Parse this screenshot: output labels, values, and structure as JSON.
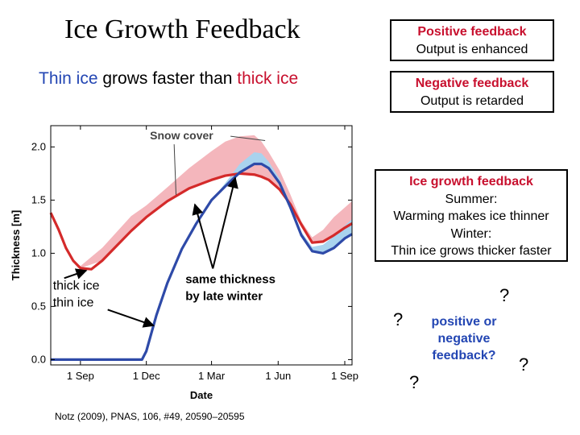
{
  "slide": {
    "title": "Ice Growth Feedback",
    "subtitle": {
      "part1": "Thin ice",
      "part2": " grows faster than ",
      "part3": "thick ice"
    },
    "positive_box": {
      "heading": "Positive feedback",
      "text": "Output is enhanced"
    },
    "negative_box": {
      "heading": "Negative feedback",
      "text": "Output is retarded"
    },
    "growth_box": {
      "heading": "Ice growth feedback",
      "lines": [
        "Summer:",
        "Warming makes ice thinner",
        "Winter:",
        "Thin ice grows thicker faster"
      ]
    },
    "question_text": "positive or negative feedback?",
    "question_mark": "?",
    "citation": "Notz (2009), PNAS, 106, #49, 20590–20595"
  },
  "colors": {
    "thick_ice": "#d42a2a",
    "thin_ice": "#2e4aa8",
    "snow_thick": "#f4b6bc",
    "snow_thin": "#a9d3ee",
    "title_red": "#c8102e",
    "title_blue": "#2346b3"
  },
  "chart_data": {
    "type": "line",
    "xlabel": "Date",
    "ylabel": "Thickness [m]",
    "x_ticks": [
      "1 Sep",
      "1 Dec",
      "1 Mar",
      "1 Jun",
      "1 Sep"
    ],
    "x_tick_days": [
      0,
      91,
      181,
      273,
      365
    ],
    "xlim_days": [
      -41,
      375
    ],
    "y_ticks": [
      0.0,
      0.5,
      1.0,
      1.5,
      2.0
    ],
    "ylim": [
      -0.05,
      2.2
    ],
    "grid": false,
    "series": [
      {
        "name": "thick ice",
        "color": "#d42a2a",
        "x_days": [
          -41,
          -30,
          -20,
          -10,
          0,
          15,
          30,
          50,
          70,
          91,
          120,
          150,
          181,
          200,
          220,
          240,
          250,
          260,
          275,
          290,
          305,
          320,
          335,
          350,
          365,
          375
        ],
        "values": [
          1.38,
          1.22,
          1.05,
          0.93,
          0.86,
          0.85,
          0.93,
          1.07,
          1.21,
          1.34,
          1.49,
          1.61,
          1.69,
          1.73,
          1.75,
          1.74,
          1.72,
          1.69,
          1.6,
          1.46,
          1.27,
          1.1,
          1.11,
          1.17,
          1.24,
          1.28
        ]
      },
      {
        "name": "thin ice",
        "color": "#2e4aa8",
        "x_days": [
          -41,
          70,
          85,
          91,
          105,
          120,
          140,
          160,
          181,
          200,
          220,
          240,
          250,
          260,
          275,
          290,
          305,
          320,
          335,
          350,
          365,
          375
        ],
        "values": [
          0.0,
          0.0,
          0.0,
          0.08,
          0.42,
          0.72,
          1.04,
          1.28,
          1.5,
          1.63,
          1.76,
          1.84,
          1.84,
          1.8,
          1.66,
          1.43,
          1.17,
          1.02,
          1.0,
          1.05,
          1.14,
          1.18
        ]
      }
    ],
    "bands": [
      {
        "label": "Snow cover",
        "color": "#f4b6bc",
        "x_days": [
          -10,
          0,
          30,
          70,
          91,
          120,
          150,
          181,
          200,
          220,
          240,
          250,
          260,
          275,
          290,
          305,
          320,
          335,
          350,
          365,
          375
        ],
        "upper": [
          0.93,
          0.88,
          1.05,
          1.35,
          1.45,
          1.62,
          1.8,
          1.96,
          2.05,
          2.1,
          2.11,
          2.05,
          1.95,
          1.78,
          1.55,
          1.3,
          1.15,
          1.22,
          1.34,
          1.43,
          1.49
        ],
        "lower": [
          0.93,
          0.86,
          0.93,
          1.21,
          1.34,
          1.49,
          1.61,
          1.69,
          1.73,
          1.75,
          1.74,
          1.72,
          1.69,
          1.6,
          1.46,
          1.27,
          1.1,
          1.11,
          1.17,
          1.24,
          1.28
        ]
      },
      {
        "label": "snow on thin ice",
        "color": "#a9d3ee",
        "x_days": [
          181,
          200,
          220,
          240,
          250,
          260,
          275,
          290,
          305,
          320,
          335,
          350,
          365,
          375
        ],
        "upper": [
          1.5,
          1.66,
          1.84,
          1.95,
          1.94,
          1.86,
          1.7,
          1.46,
          1.2,
          1.06,
          1.08,
          1.16,
          1.26,
          1.32
        ],
        "lower": [
          1.5,
          1.63,
          1.76,
          1.84,
          1.84,
          1.8,
          1.66,
          1.43,
          1.17,
          1.02,
          1.0,
          1.05,
          1.14,
          1.18
        ]
      }
    ],
    "annotations": [
      {
        "text": "Snow cover",
        "x_day": 96,
        "y": 2.07,
        "arrows_to": [
          [
            132,
            1.55
          ],
          [
            255,
            2.06
          ]
        ]
      },
      {
        "text": "thick ice",
        "x_day": -38,
        "y": 0.66,
        "arrow_to": [
          8,
          0.86
        ]
      },
      {
        "text": "thin ice",
        "x_day": -38,
        "y": 0.5,
        "arrow_to": [
          101,
          0.35
        ]
      },
      {
        "text": "same thickness by late winter",
        "x_day": 145,
        "y": 0.72,
        "arrows_to": [
          [
            158,
            1.49
          ],
          [
            216,
            1.74
          ]
        ]
      }
    ]
  }
}
